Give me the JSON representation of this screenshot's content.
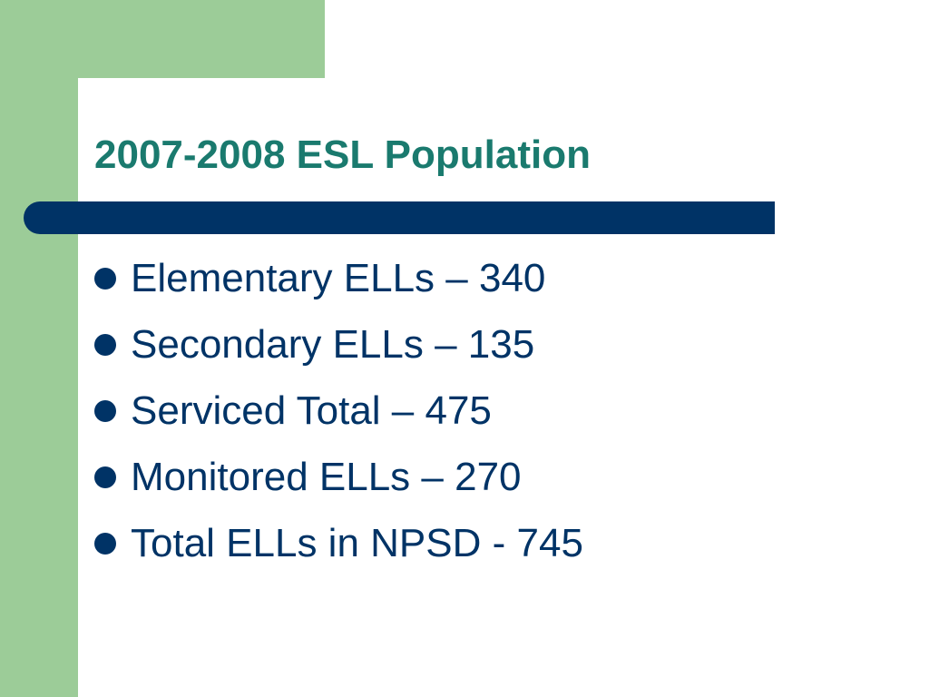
{
  "slide": {
    "title": "2007-2008 ESL Population",
    "bullets": [
      {
        "text": "Elementary ELLs – 340"
      },
      {
        "text": "Secondary ELLs – 135"
      },
      {
        "text": "Serviced Total – 475"
      },
      {
        "text": "Monitored ELLs – 270"
      },
      {
        "text": "Total ELLs in NPSD - 745"
      }
    ]
  },
  "colors": {
    "accent_green": "#9ccc98",
    "title_color": "#1a7a6e",
    "text_color": "#003366",
    "bar_color": "#003366"
  }
}
